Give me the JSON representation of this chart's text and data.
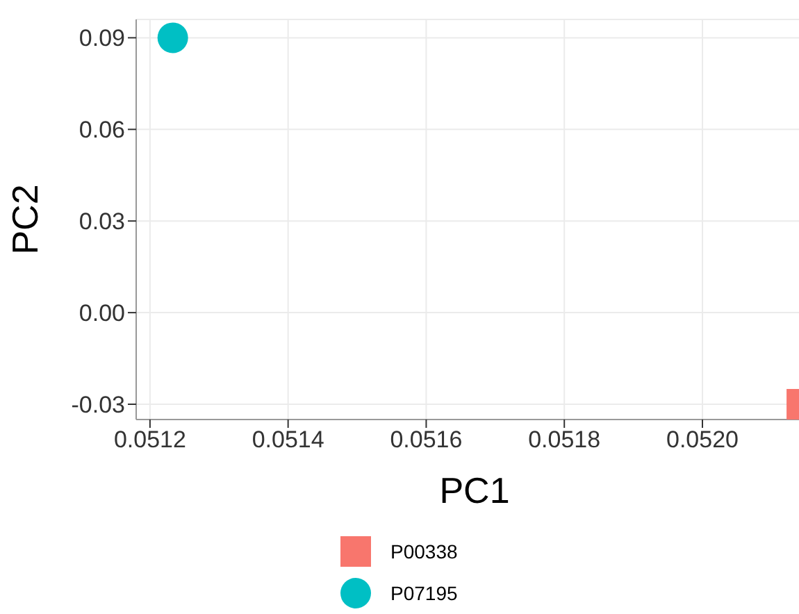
{
  "chart_data": {
    "type": "scatter",
    "xlabel": "PC1",
    "ylabel": "PC2",
    "xlim": [
      0.05118,
      0.05216
    ],
    "xticks": [
      {
        "value": 0.0512,
        "label": "0.0512"
      },
      {
        "value": 0.0514,
        "label": "0.0514"
      },
      {
        "value": 0.0516,
        "label": "0.0516"
      },
      {
        "value": 0.0518,
        "label": "0.0518"
      },
      {
        "value": 0.052,
        "label": "0.0520"
      }
    ],
    "ylim": [
      -0.035,
      0.096
    ],
    "yticks": [
      {
        "value": -0.03,
        "label": "-0.03"
      },
      {
        "value": 0,
        "label": "0.00"
      },
      {
        "value": 0.03,
        "label": "0.03"
      },
      {
        "value": 0.06,
        "label": "0.06"
      },
      {
        "value": 0.09,
        "label": "0.09"
      }
    ],
    "grid": true,
    "legend": "bottom",
    "series": [
      {
        "name": "P00338",
        "color": "#f8766d",
        "marker": "square",
        "x": [
          0.052144
        ],
        "values": [
          -0.03
        ]
      },
      {
        "name": "P07195",
        "color": "#00bfc4",
        "marker": "circle",
        "x": [
          0.051233
        ],
        "values": [
          0.09
        ]
      }
    ]
  }
}
